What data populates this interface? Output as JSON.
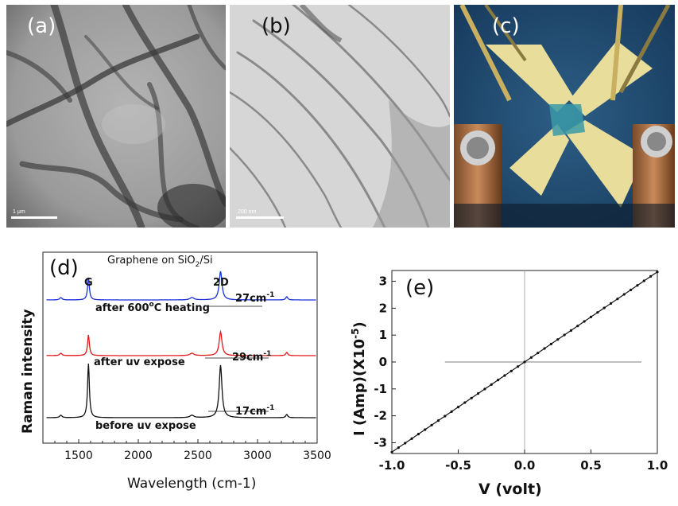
{
  "panels": {
    "a": {
      "label": "(a)",
      "scale": "1 μm"
    },
    "b": {
      "label": "(b)",
      "scale": "200 nm"
    },
    "c": {
      "label": "(c)"
    },
    "d": {
      "label": "(d)"
    },
    "e": {
      "label": "(e)"
    }
  },
  "colors": {
    "blue": "#1a2fd6",
    "red": "#e01818",
    "black": "#111111"
  },
  "chart_data": [
    {
      "type": "line",
      "title": "Graphene on SiO2/Si",
      "title_parts": {
        "pre": "Graphene on SiO",
        "sub": "2",
        "post": "/Si"
      },
      "xlabel": "Wavelength (cm-1)",
      "ylabel": "Raman intensity",
      "xlim": [
        1200,
        3500
      ],
      "xticks": [
        1500,
        2000,
        2500,
        3000,
        3500
      ],
      "peak_labels": [
        "G",
        "2D"
      ],
      "series": [
        {
          "name": "after 600°C heating",
          "name_parts": {
            "pre": "after 600",
            "sup": "o",
            "post": "C heating"
          },
          "fwhm_parts": {
            "pre": "27cm",
            "sup": "-1"
          },
          "fwhm": "27cm-1",
          "color": "#1a2fd6"
        },
        {
          "name": "after uv expose",
          "name_parts": {
            "pre": "after uv expose",
            "sup": "",
            "post": ""
          },
          "fwhm_parts": {
            "pre": "29cm",
            "sup": "-1"
          },
          "fwhm": "29cm-1",
          "color": "#e01818"
        },
        {
          "name": "before uv expose",
          "name_parts": {
            "pre": "before uv expose",
            "sup": "",
            "post": ""
          },
          "fwhm_parts": {
            "pre": "17cm",
            "sup": "-1"
          },
          "fwhm": "17cm-1",
          "color": "#111111"
        }
      ]
    },
    {
      "type": "line",
      "xlabel": "V (volt)",
      "ylabel": "I (Amp)(X10-5)",
      "ylabel_parts": {
        "pre": "I (Amp)(X10",
        "sup": "-5",
        "post": ")"
      },
      "xlim": [
        -1.0,
        1.0
      ],
      "ylim": [
        -3.4,
        3.4
      ],
      "xticks": [
        "-1.0",
        "-0.5",
        "0.0",
        "0.5",
        "1.0"
      ],
      "yticks": [
        "-3",
        "-2",
        "-1",
        "0",
        "1",
        "2",
        "3"
      ],
      "series": [
        {
          "x": [
            -1.0,
            1.0
          ],
          "y": [
            -3.35,
            3.35
          ]
        }
      ]
    }
  ]
}
